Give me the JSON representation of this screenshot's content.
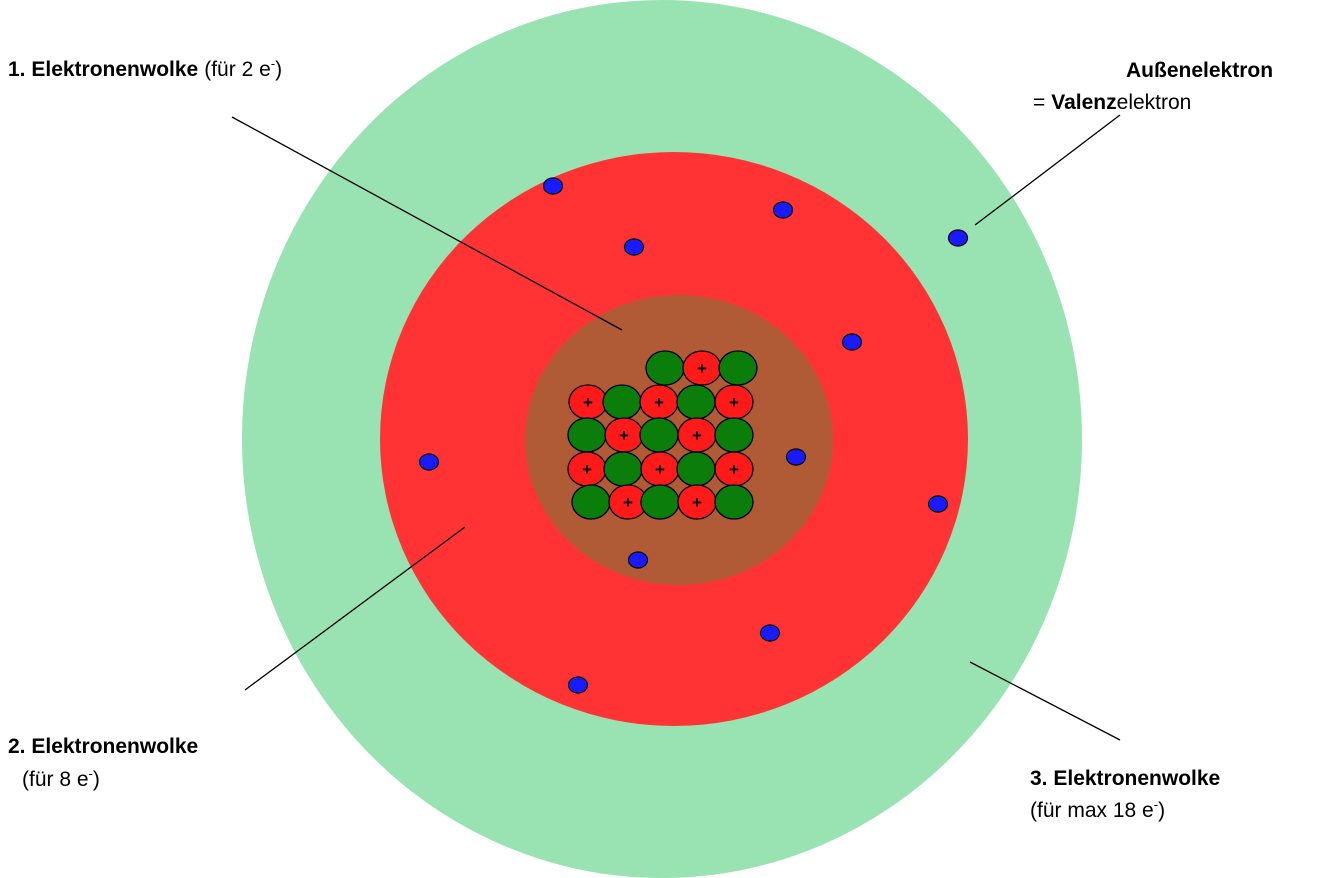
{
  "clouds": [
    {
      "title": "1. Elektronenwolke",
      "capacity": "(für 2 e",
      "charge": "-",
      "close": ")"
    },
    {
      "title": "2. Elektronenwolke",
      "capacity": "(für 8 e",
      "charge": "-",
      "close": ")"
    },
    {
      "title": "3. Elektronenwolke",
      "capacity": "(für max 18 e",
      "charge": "-",
      "close": ")"
    }
  ],
  "valence": {
    "line1": "Außenelektron",
    "prefix": "=",
    "bold": "Valenz",
    "rest": "elektron"
  },
  "proton_sign": "+"
}
